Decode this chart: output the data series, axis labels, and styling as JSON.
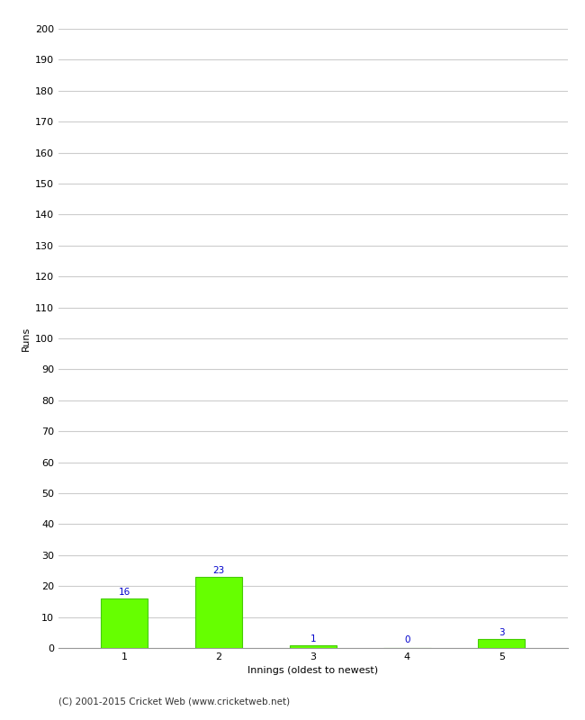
{
  "innings": [
    1,
    2,
    3,
    4,
    5
  ],
  "runs": [
    16,
    23,
    1,
    0,
    3
  ],
  "bar_color": "#66ff00",
  "bar_edge_color": "#44cc00",
  "label_color": "#0000cc",
  "xlabel": "Innings (oldest to newest)",
  "ylabel": "Runs",
  "ylim": [
    0,
    200
  ],
  "yticks": [
    0,
    10,
    20,
    30,
    40,
    50,
    60,
    70,
    80,
    90,
    100,
    110,
    120,
    130,
    140,
    150,
    160,
    170,
    180,
    190,
    200
  ],
  "background_color": "#ffffff",
  "grid_color": "#cccccc",
  "footer": "(C) 2001-2015 Cricket Web (www.cricketweb.net)",
  "label_fontsize": 7.5,
  "axis_fontsize": 8,
  "tick_fontsize": 8,
  "footer_fontsize": 7.5,
  "bar_width": 0.5
}
